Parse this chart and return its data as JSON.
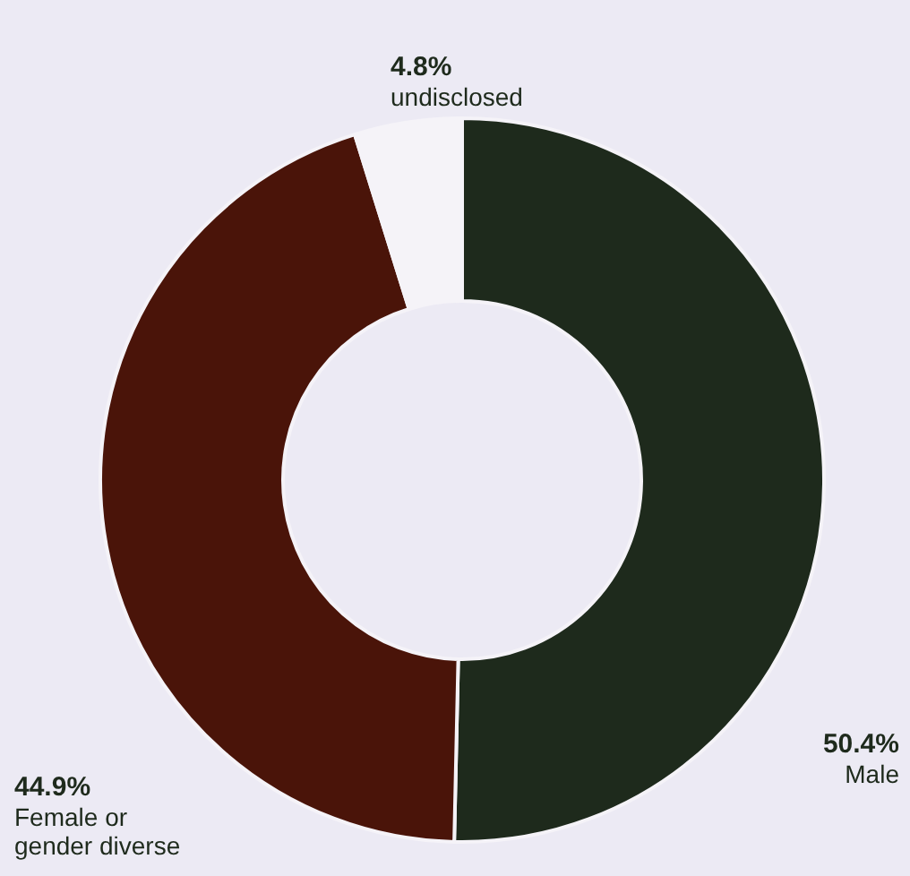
{
  "chart_data": {
    "type": "donut",
    "categories": [
      "Male",
      "Female or\ngender diverse",
      "undisclosed"
    ],
    "values": [
      50.4,
      44.9,
      4.8
    ],
    "value_labels": [
      "50.4%",
      "44.9%",
      "4.8%"
    ],
    "colors": [
      "#1e2a1c",
      "#4a1409",
      "#f5f3f8"
    ]
  }
}
